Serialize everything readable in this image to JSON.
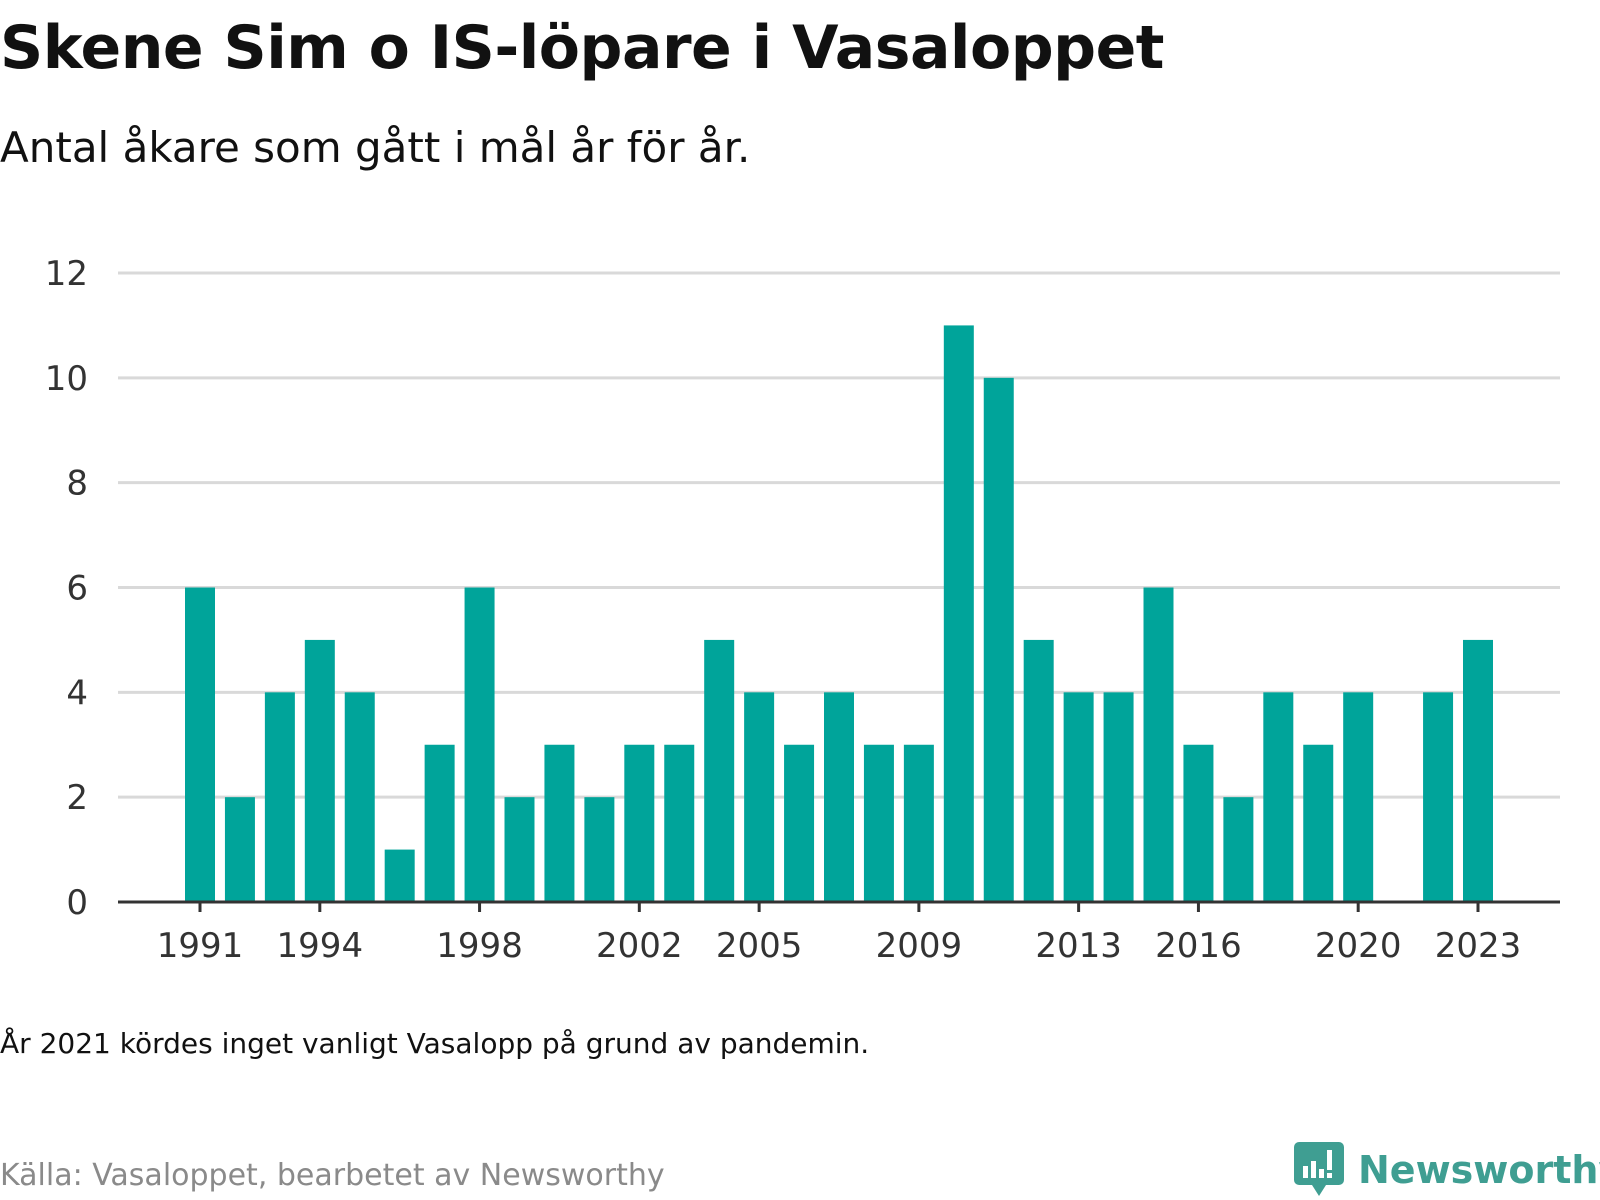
{
  "title": "Skene Sim o IS-löpare i Vasaloppet",
  "subtitle": "Antal åkare som gått i mål år för år.",
  "note": "År 2021 kördes inget vanligt Vasalopp på grund av pandemin.",
  "source": "Källa: Vasaloppet, bearbetet av Newsworthy",
  "brand": {
    "name": "Newsworthy",
    "color": "#3f9e92",
    "icon": "bar-chart-speech-bubble-icon"
  },
  "colors": {
    "bar": "#00a49a",
    "grid": "#d9d9d9",
    "axis": "#333333",
    "tick_text": "#333333"
  },
  "chart_data": {
    "type": "bar",
    "title": "Skene Sim o IS-löpare i Vasaloppet",
    "subtitle": "Antal åkare som gått i mål år för år.",
    "xlabel": "",
    "ylabel": "",
    "categories": [
      1991,
      1992,
      1993,
      1994,
      1995,
      1996,
      1997,
      1998,
      1999,
      2000,
      2001,
      2002,
      2003,
      2004,
      2005,
      2006,
      2007,
      2008,
      2009,
      2010,
      2011,
      2012,
      2013,
      2014,
      2015,
      2016,
      2017,
      2018,
      2019,
      2020,
      2021,
      2022,
      2023
    ],
    "values": [
      6,
      2,
      4,
      5,
      4,
      1,
      3,
      6,
      2,
      3,
      2,
      3,
      3,
      5,
      4,
      3,
      4,
      3,
      3,
      11,
      10,
      5,
      4,
      4,
      6,
      3,
      2,
      4,
      3,
      4,
      null,
      4,
      5
    ],
    "x_tick_labels": [
      "1991",
      "1994",
      "1998",
      "2002",
      "2005",
      "2009",
      "2013",
      "2016",
      "2020",
      "2023"
    ],
    "y_ticks": [
      0,
      2,
      4,
      6,
      8,
      10,
      12
    ],
    "ylim": [
      0,
      12
    ],
    "grid": true,
    "legend": "none"
  }
}
